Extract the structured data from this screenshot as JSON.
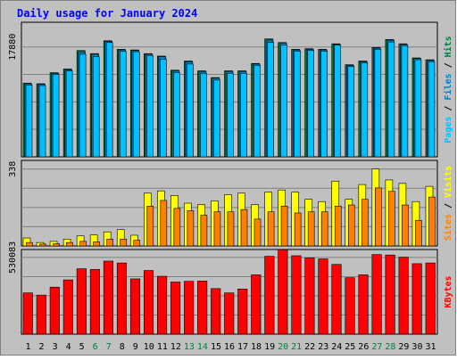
{
  "title": "Daily usage for January 2024",
  "colors": {
    "frame": "#c0c0c0",
    "title": "#0000ff",
    "hits": "#008040",
    "files": "#0080c0",
    "pages": "#00c0ff",
    "visits": "#ffff00",
    "sites": "#ff8000",
    "kbytes": "#ff0000",
    "weekend_day": "#008040",
    "weekday": "#000000"
  },
  "chart_data": [
    {
      "type": "bar",
      "panel": "hits-files-pages",
      "legend": [
        "Pages",
        "Files",
        "Hits"
      ],
      "y_tick_label": "17880",
      "y_tick_value": 17880,
      "ylim": [
        0,
        21900
      ],
      "categories": [
        "1",
        "2",
        "3",
        "4",
        "5",
        "6",
        "7",
        "8",
        "9",
        "10",
        "11",
        "12",
        "13",
        "14",
        "15",
        "16",
        "17",
        "18",
        "19",
        "20",
        "21",
        "22",
        "23",
        "24",
        "25",
        "26",
        "27",
        "28",
        "29",
        "30",
        "31"
      ],
      "series": [
        {
          "name": "Hits",
          "values": [
            12000,
            11900,
            13700,
            14300,
            17300,
            16800,
            18900,
            17500,
            17400,
            16800,
            16400,
            14100,
            15600,
            14000,
            12900,
            14000,
            14000,
            15200,
            19200,
            18600,
            17500,
            17600,
            17500,
            18400,
            15000,
            15600,
            17800,
            19100,
            18400,
            16100,
            15800
          ]
        },
        {
          "name": "Files",
          "values": [
            11900,
            11800,
            13600,
            14200,
            17100,
            16700,
            18800,
            17400,
            17300,
            16700,
            16300,
            14000,
            15500,
            13900,
            12800,
            13900,
            13900,
            15100,
            19000,
            18500,
            17400,
            17500,
            17400,
            18300,
            14900,
            15500,
            17700,
            19000,
            18300,
            16000,
            15700
          ]
        },
        {
          "name": "Pages",
          "values": [
            11700,
            11600,
            13400,
            14000,
            16700,
            16300,
            18600,
            17200,
            17100,
            16500,
            15900,
            13700,
            15100,
            13600,
            12500,
            13600,
            13600,
            14900,
            18600,
            18200,
            17200,
            17300,
            17200,
            18200,
            14700,
            15300,
            17500,
            18700,
            18100,
            15800,
            15500
          ]
        }
      ]
    },
    {
      "type": "bar",
      "panel": "sites-visits",
      "legend": [
        "Sites",
        "Visits"
      ],
      "y_tick_label": "338",
      "y_tick_value": 338,
      "ylim": [
        0,
        376
      ],
      "categories": [
        "1",
        "2",
        "3",
        "4",
        "5",
        "6",
        "7",
        "8",
        "9",
        "10",
        "11",
        "12",
        "13",
        "14",
        "15",
        "16",
        "17",
        "18",
        "19",
        "20",
        "21",
        "22",
        "23",
        "24",
        "25",
        "26",
        "27",
        "28",
        "29",
        "30",
        "31"
      ],
      "series": [
        {
          "name": "Visits",
          "values": [
            35,
            15,
            20,
            30,
            44,
            48,
            62,
            72,
            47,
            232,
            242,
            222,
            188,
            182,
            198,
            225,
            232,
            182,
            236,
            246,
            236,
            205,
            195,
            285,
            205,
            270,
            338,
            290,
            275,
            195,
            262
          ]
        },
        {
          "name": "Sites",
          "values": [
            15,
            8,
            10,
            15,
            20,
            18,
            30,
            30,
            25,
            175,
            200,
            165,
            155,
            135,
            150,
            150,
            160,
            118,
            150,
            175,
            145,
            150,
            150,
            175,
            180,
            205,
            255,
            240,
            180,
            112,
            215
          ]
        }
      ]
    },
    {
      "type": "bar",
      "panel": "kbytes",
      "legend": [
        "KBytes"
      ],
      "y_tick_label": "530083",
      "y_tick_value": 530083,
      "ylim": [
        0,
        585000
      ],
      "categories": [
        "1",
        "2",
        "3",
        "4",
        "5",
        "6",
        "7",
        "8",
        "9",
        "10",
        "11",
        "12",
        "13",
        "14",
        "15",
        "16",
        "17",
        "18",
        "19",
        "20",
        "21",
        "22",
        "23",
        "24",
        "25",
        "26",
        "27",
        "28",
        "29",
        "30",
        "31"
      ],
      "series": [
        {
          "name": "KBytes",
          "values": [
            285000,
            270000,
            325000,
            375000,
            452000,
            447000,
            505000,
            492000,
            382000,
            440000,
            400000,
            360000,
            365000,
            367000,
            315000,
            285000,
            312000,
            410000,
            538000,
            583000,
            542000,
            527000,
            520000,
            482000,
            390000,
            410000,
            550000,
            547000,
            532000,
            487000,
            492000
          ]
        }
      ]
    }
  ],
  "x_axis": {
    "labels": [
      "1",
      "2",
      "3",
      "4",
      "5",
      "6",
      "7",
      "8",
      "9",
      "10",
      "11",
      "12",
      "13",
      "14",
      "15",
      "16",
      "17",
      "18",
      "19",
      "20",
      "21",
      "22",
      "23",
      "24",
      "25",
      "26",
      "27",
      "28",
      "29",
      "30",
      "31"
    ],
    "weekend_days": [
      "6",
      "7",
      "13",
      "14",
      "20",
      "21",
      "27",
      "28"
    ]
  }
}
